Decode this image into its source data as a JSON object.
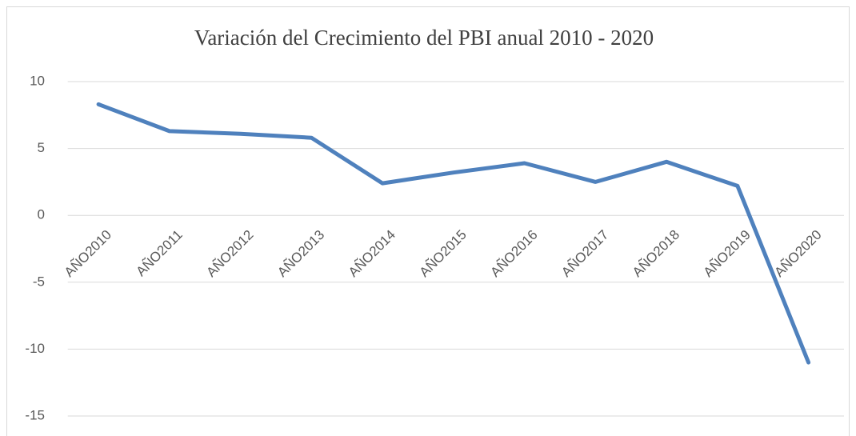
{
  "chart_data": {
    "type": "line",
    "title": "Variación del Crecimiento del PBI anual 2010 - 2020",
    "categories": [
      "AÑO2010",
      "AÑO2011",
      "AÑO2012",
      "AÑO2013",
      "AÑO2014",
      "AÑO2015",
      "AÑO2016",
      "AÑO2017",
      "AÑO2018",
      "AÑO2019",
      "AÑO2020"
    ],
    "values": [
      8.3,
      6.3,
      6.1,
      5.8,
      2.4,
      3.2,
      3.9,
      2.5,
      4.0,
      2.2,
      -11.0
    ],
    "color": "#4f81bd",
    "ylim": [
      -15,
      10
    ],
    "yticks": [
      -15,
      -10,
      -5,
      0,
      5,
      10
    ],
    "grid": true
  }
}
